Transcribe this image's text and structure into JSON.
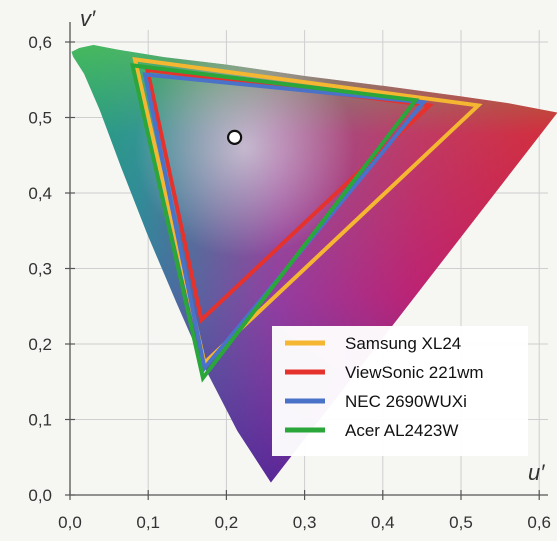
{
  "chart_data": {
    "type": "scatter",
    "title": "",
    "xlabel": "u′",
    "ylabel": "v′",
    "xlim": [
      0.0,
      0.63
    ],
    "ylim": [
      0.0,
      0.63
    ],
    "x_ticks": [
      {
        "value": 0.0,
        "label": "0,0"
      },
      {
        "value": 0.1,
        "label": "0,1"
      },
      {
        "value": 0.2,
        "label": "0,2"
      },
      {
        "value": 0.3,
        "label": "0,3"
      },
      {
        "value": 0.4,
        "label": "0,4"
      },
      {
        "value": 0.5,
        "label": "0,5"
      },
      {
        "value": 0.6,
        "label": "0,6"
      }
    ],
    "y_ticks": [
      {
        "value": 0.0,
        "label": "0,0"
      },
      {
        "value": 0.1,
        "label": "0,1"
      },
      {
        "value": 0.2,
        "label": "0,2"
      },
      {
        "value": 0.3,
        "label": "0,3"
      },
      {
        "value": 0.4,
        "label": "0,4"
      },
      {
        "value": 0.5,
        "label": "0,5"
      },
      {
        "value": 0.6,
        "label": "0,6"
      }
    ],
    "grid": true,
    "legend_position": "bottom-right",
    "white_point": {
      "u": 0.2105,
      "v": 0.4737
    },
    "spectral_locus": [
      [
        0.2569,
        0.0165
      ],
      [
        0.214,
        0.085
      ],
      [
        0.1741,
        0.165
      ],
      [
        0.136,
        0.255
      ],
      [
        0.099,
        0.345
      ],
      [
        0.065,
        0.435
      ],
      [
        0.038,
        0.51
      ],
      [
        0.018,
        0.558
      ],
      [
        0.004,
        0.5806
      ],
      [
        0.002,
        0.587
      ],
      [
        0.012,
        0.592
      ],
      [
        0.03,
        0.596
      ],
      [
        0.06,
        0.59
      ],
      [
        0.12,
        0.58
      ],
      [
        0.2,
        0.57
      ],
      [
        0.3,
        0.555
      ],
      [
        0.4,
        0.542
      ],
      [
        0.5,
        0.528
      ],
      [
        0.56,
        0.519
      ],
      [
        0.6233,
        0.5065
      ]
    ],
    "series": [
      {
        "name": "Samsung XL24",
        "color": "#f5b731",
        "points": [
          [
            0.083,
            0.577
          ],
          [
            0.522,
            0.516
          ],
          [
            0.172,
            0.175
          ]
        ]
      },
      {
        "name": "ViewSonic 221wm",
        "color": "#e5322d",
        "points": [
          [
            0.099,
            0.563
          ],
          [
            0.46,
            0.516
          ],
          [
            0.168,
            0.232
          ]
        ]
      },
      {
        "name": "NEC 2690WUXi",
        "color": "#4a72c8",
        "points": [
          [
            0.096,
            0.557
          ],
          [
            0.452,
            0.52
          ],
          [
            0.172,
            0.168
          ]
        ]
      },
      {
        "name": "Acer AL2423W",
        "color": "#2aa63a",
        "points": [
          [
            0.08,
            0.569
          ],
          [
            0.442,
            0.523
          ],
          [
            0.17,
            0.155
          ]
        ]
      }
    ]
  }
}
